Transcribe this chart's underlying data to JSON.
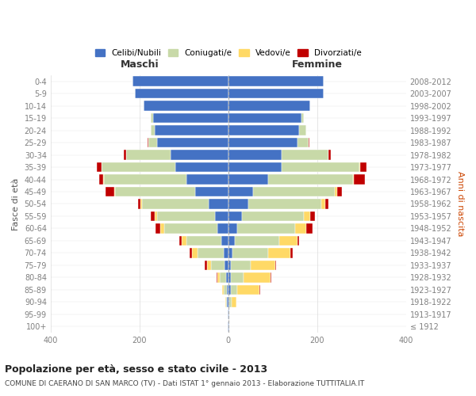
{
  "age_groups": [
    "100+",
    "95-99",
    "90-94",
    "85-89",
    "80-84",
    "75-79",
    "70-74",
    "65-69",
    "60-64",
    "55-59",
    "50-54",
    "45-49",
    "40-44",
    "35-39",
    "30-34",
    "25-29",
    "20-24",
    "15-19",
    "10-14",
    "5-9",
    "0-4"
  ],
  "birth_years": [
    "≤ 1912",
    "1913-1917",
    "1918-1922",
    "1923-1927",
    "1928-1932",
    "1933-1937",
    "1938-1942",
    "1943-1947",
    "1948-1952",
    "1953-1957",
    "1958-1962",
    "1963-1967",
    "1968-1972",
    "1973-1977",
    "1978-1982",
    "1983-1987",
    "1988-1992",
    "1993-1997",
    "1998-2002",
    "2003-2007",
    "2008-2012"
  ],
  "colors": {
    "celibi": "#4472C4",
    "coniugati": "#c8d9a8",
    "vedovi": "#ffd966",
    "divorziati": "#c00000"
  },
  "maschi": {
    "celibi": [
      2,
      2,
      3,
      4,
      5,
      8,
      10,
      15,
      25,
      30,
      45,
      75,
      95,
      120,
      130,
      160,
      165,
      170,
      190,
      210,
      215
    ],
    "coniugati": [
      0,
      0,
      2,
      6,
      15,
      30,
      60,
      80,
      120,
      130,
      150,
      180,
      185,
      165,
      100,
      20,
      10,
      5,
      0,
      0,
      0
    ],
    "vedovi": [
      0,
      0,
      1,
      3,
      5,
      10,
      12,
      10,
      8,
      5,
      3,
      2,
      1,
      1,
      0,
      0,
      0,
      0,
      0,
      0,
      0
    ],
    "divorziati": [
      0,
      0,
      0,
      1,
      2,
      5,
      5,
      5,
      10,
      10,
      5,
      20,
      10,
      10,
      5,
      2,
      0,
      0,
      0,
      0,
      0
    ]
  },
  "femmine": {
    "nubili": [
      2,
      2,
      3,
      5,
      5,
      5,
      10,
      15,
      20,
      30,
      45,
      55,
      90,
      120,
      120,
      155,
      160,
      165,
      185,
      215,
      215
    ],
    "coniugate": [
      0,
      0,
      5,
      15,
      30,
      45,
      80,
      100,
      130,
      140,
      165,
      185,
      190,
      175,
      105,
      25,
      15,
      5,
      0,
      0,
      0
    ],
    "vedove": [
      0,
      0,
      10,
      50,
      60,
      55,
      50,
      40,
      25,
      15,
      8,
      5,
      3,
      2,
      1,
      0,
      0,
      0,
      0,
      0,
      0
    ],
    "divorziate": [
      0,
      0,
      0,
      1,
      2,
      3,
      5,
      5,
      15,
      10,
      8,
      10,
      25,
      15,
      5,
      2,
      0,
      0,
      0,
      0,
      0
    ]
  },
  "xlim": 400,
  "title": "Popolazione per età, sesso e stato civile - 2013",
  "subtitle": "COMUNE DI CAERANO DI SAN MARCO (TV) - Dati ISTAT 1° gennaio 2013 - Elaborazione TUTTITALIA.IT",
  "ylabel_left": "Fasce di età",
  "ylabel_right": "Anni di nascita",
  "xlabel_left": "Maschi",
  "xlabel_right": "Femmine",
  "background_color": "#ffffff",
  "grid_color": "#cccccc",
  "tick_color": "#808080",
  "bar_height": 0.8
}
